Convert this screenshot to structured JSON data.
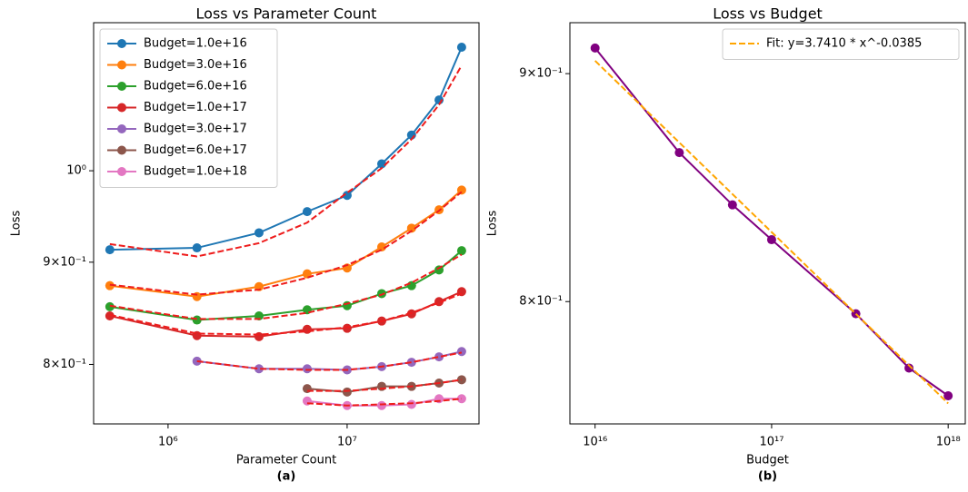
{
  "chart_data": [
    {
      "type": "line",
      "title": "Loss vs Parameter Count",
      "xlabel": "Parameter Count",
      "ylabel": "Loss",
      "caption": "(a)",
      "xlog": true,
      "ylog": true,
      "xlim": [
        384000,
        54500000
      ],
      "ylim": [
        0.747,
        1.186
      ],
      "xticks": [
        {
          "value": 1000000,
          "label": "10⁶"
        },
        {
          "value": 10000000,
          "label": "10⁷"
        }
      ],
      "yticks": [
        {
          "value": 1,
          "label": "10⁰"
        },
        {
          "value": 0.9,
          "label": "9×10⁻¹"
        },
        {
          "value": 0.8,
          "label": "8×10⁻¹"
        }
      ],
      "legend": "upper left",
      "x": [
        473000,
        1450000,
        3220000,
        5980000,
        10000000,
        15600000,
        22900000,
        32600000,
        43600000
      ],
      "series": [
        {
          "name": "Budget=1.0e+16",
          "color": "#1f77b4",
          "values": [
            0.913,
            0.915,
            0.931,
            0.954,
            0.972,
            1.008,
            1.042,
            1.085,
            1.153
          ]
        },
        {
          "name": "Budget=3.0e+16",
          "color": "#ff7f0e",
          "values": [
            0.876,
            0.865,
            0.875,
            0.888,
            0.894,
            0.916,
            0.936,
            0.956,
            0.978
          ]
        },
        {
          "name": "Budget=6.0e+16",
          "color": "#2ca02c",
          "values": [
            0.855,
            0.842,
            0.846,
            0.852,
            0.856,
            0.868,
            0.876,
            0.892,
            0.912
          ]
        },
        {
          "name": "Budget=1.0e+17",
          "color": "#d62728",
          "values": [
            0.846,
            0.827,
            0.826,
            0.833,
            0.834,
            0.841,
            0.848,
            0.86,
            0.87
          ]
        },
        {
          "name": "Budget=3.0e+17",
          "color": "#9467bd",
          "values": [
            null,
            0.803,
            0.796,
            0.796,
            0.795,
            0.798,
            0.802,
            0.807,
            0.812
          ]
        },
        {
          "name": "Budget=6.0e+17",
          "color": "#8c564b",
          "values": [
            null,
            null,
            null,
            0.778,
            0.775,
            0.78,
            0.78,
            0.783,
            0.786
          ]
        },
        {
          "name": "Budget=1.0e+18",
          "color": "#e377c2",
          "values": [
            null,
            null,
            null,
            0.767,
            0.763,
            0.763,
            0.764,
            0.769,
            0.769
          ]
        }
      ],
      "fits": [
        {
          "color": "#ee1c1c",
          "linestyle": "dashed",
          "values": [
            0.919,
            0.906,
            0.92,
            0.942,
            0.975,
            1.003,
            1.037,
            1.079,
            1.129
          ]
        },
        {
          "color": "#ee1c1c",
          "linestyle": "dashed",
          "values": [
            0.877,
            0.867,
            0.872,
            0.884,
            0.897,
            0.913,
            0.933,
            0.955,
            0.976
          ]
        },
        {
          "color": "#ee1c1c",
          "linestyle": "dashed",
          "values": [
            0.856,
            0.843,
            0.843,
            0.849,
            0.858,
            0.867,
            0.879,
            0.894,
            0.908
          ]
        },
        {
          "color": "#ee1c1c",
          "linestyle": "dashed",
          "values": [
            0.847,
            0.829,
            0.828,
            0.831,
            0.835,
            0.841,
            0.849,
            0.859,
            0.868
          ]
        },
        {
          "color": "#ee1c1c",
          "linestyle": "dashed",
          "values": [
            null,
            0.803,
            0.796,
            0.795,
            0.795,
            0.798,
            0.802,
            0.807,
            0.811
          ]
        },
        {
          "color": "#ee1c1c",
          "linestyle": "dashed",
          "values": [
            null,
            null,
            null,
            0.776,
            0.776,
            0.778,
            0.78,
            0.783,
            0.786
          ]
        },
        {
          "color": "#ee1c1c",
          "linestyle": "dashed",
          "values": [
            null,
            null,
            null,
            0.765,
            0.763,
            0.764,
            0.765,
            0.767,
            0.769
          ]
        }
      ]
    },
    {
      "type": "line",
      "title": "Loss vs Budget",
      "xlabel": "Budget",
      "ylabel": "Loss",
      "caption": "(b)",
      "xlog": true,
      "ylog": true,
      "xlim": [
        7200000000000000.0,
        1.25e+18
      ],
      "ylim": [
        0.751,
        0.924
      ],
      "xticks": [
        {
          "value": 1e+16,
          "label": "10¹⁶"
        },
        {
          "value": 1e+17,
          "label": "10¹⁷"
        },
        {
          "value": 1e+18,
          "label": "10¹⁸"
        }
      ],
      "yticks": [
        {
          "value": 0.9,
          "label": "9×10⁻¹"
        },
        {
          "value": 0.8,
          "label": "8×10⁻¹"
        }
      ],
      "legend": "upper right",
      "x": [
        1e+16,
        3e+16,
        6e+16,
        1e+17,
        3e+17,
        6e+17,
        1e+18
      ],
      "series": [
        {
          "color": "#800080",
          "values": [
            0.912,
            0.864,
            0.841,
            0.826,
            0.795,
            0.773,
            0.762
          ]
        }
      ],
      "fits": [
        {
          "name": "Fit: y=3.7410 * x^-0.0385",
          "color": "#ffa500",
          "linestyle": "dashed",
          "x": [
            1e+16,
            1e+18
          ],
          "values": [
            0.906,
            0.759
          ]
        }
      ]
    }
  ]
}
